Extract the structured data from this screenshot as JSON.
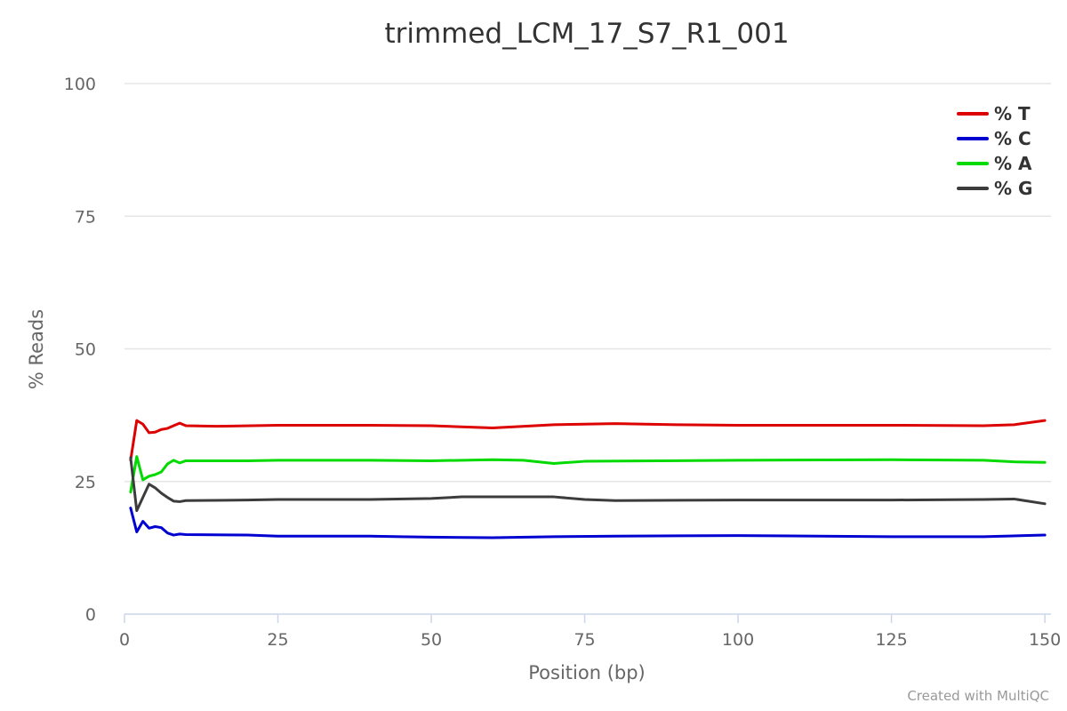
{
  "chart_data": {
    "type": "line",
    "title": "trimmed_LCM_17_S7_R1_001",
    "xlabel": "Position (bp)",
    "ylabel": "% Reads",
    "xlim": [
      0,
      151
    ],
    "ylim": [
      0,
      100
    ],
    "xticks": [
      0,
      25,
      50,
      75,
      100,
      125,
      150
    ],
    "yticks": [
      0,
      25,
      50,
      75,
      100
    ],
    "grid": true,
    "legend_position": "top-right",
    "credit": "Created with MultiQC",
    "series": [
      {
        "name": "% T",
        "color": "#dc0000",
        "points": [
          [
            1,
            29.0
          ],
          [
            2,
            36.5
          ],
          [
            3,
            35.8
          ],
          [
            4,
            34.2
          ],
          [
            5,
            34.3
          ],
          [
            6,
            34.8
          ],
          [
            7,
            35.0
          ],
          [
            8,
            35.5
          ],
          [
            9,
            36.0
          ],
          [
            10,
            35.5
          ],
          [
            15,
            35.4
          ],
          [
            25,
            35.6
          ],
          [
            40,
            35.6
          ],
          [
            50,
            35.5
          ],
          [
            60,
            35.1
          ],
          [
            70,
            35.7
          ],
          [
            80,
            35.9
          ],
          [
            90,
            35.7
          ],
          [
            100,
            35.6
          ],
          [
            110,
            35.6
          ],
          [
            125,
            35.6
          ],
          [
            140,
            35.5
          ],
          [
            145,
            35.7
          ],
          [
            150,
            36.5
          ]
        ]
      },
      {
        "name": "% C",
        "color": "#0000d1",
        "points": [
          [
            1,
            20.0
          ],
          [
            2,
            15.5
          ],
          [
            3,
            17.5
          ],
          [
            4,
            16.2
          ],
          [
            5,
            16.5
          ],
          [
            6,
            16.3
          ],
          [
            7,
            15.3
          ],
          [
            8,
            14.9
          ],
          [
            9,
            15.1
          ],
          [
            10,
            15.0
          ],
          [
            20,
            14.9
          ],
          [
            25,
            14.7
          ],
          [
            40,
            14.7
          ],
          [
            45,
            14.6
          ],
          [
            50,
            14.5
          ],
          [
            60,
            14.4
          ],
          [
            70,
            14.6
          ],
          [
            80,
            14.7
          ],
          [
            100,
            14.8
          ],
          [
            125,
            14.6
          ],
          [
            140,
            14.6
          ],
          [
            150,
            14.9
          ]
        ]
      },
      {
        "name": "% A",
        "color": "#00da00",
        "points": [
          [
            1,
            23.0
          ],
          [
            2,
            29.7
          ],
          [
            3,
            25.3
          ],
          [
            4,
            26.0
          ],
          [
            5,
            26.3
          ],
          [
            6,
            26.8
          ],
          [
            7,
            28.3
          ],
          [
            8,
            29.0
          ],
          [
            9,
            28.5
          ],
          [
            10,
            28.9
          ],
          [
            20,
            28.9
          ],
          [
            25,
            29.0
          ],
          [
            40,
            29.0
          ],
          [
            50,
            28.9
          ],
          [
            60,
            29.1
          ],
          [
            65,
            29.0
          ],
          [
            70,
            28.4
          ],
          [
            75,
            28.8
          ],
          [
            100,
            29.0
          ],
          [
            125,
            29.1
          ],
          [
            140,
            29.0
          ],
          [
            145,
            28.7
          ],
          [
            150,
            28.6
          ]
        ]
      },
      {
        "name": "% G",
        "color": "#3c3c3c",
        "points": [
          [
            1,
            29.5
          ],
          [
            2,
            19.5
          ],
          [
            3,
            22.0
          ],
          [
            4,
            24.5
          ],
          [
            5,
            23.8
          ],
          [
            6,
            22.8
          ],
          [
            7,
            22.0
          ],
          [
            8,
            21.3
          ],
          [
            9,
            21.2
          ],
          [
            10,
            21.4
          ],
          [
            20,
            21.5
          ],
          [
            25,
            21.6
          ],
          [
            40,
            21.6
          ],
          [
            50,
            21.8
          ],
          [
            55,
            22.1
          ],
          [
            60,
            22.1
          ],
          [
            70,
            22.1
          ],
          [
            75,
            21.6
          ],
          [
            80,
            21.4
          ],
          [
            100,
            21.5
          ],
          [
            125,
            21.5
          ],
          [
            140,
            21.6
          ],
          [
            145,
            21.7
          ],
          [
            150,
            20.8
          ]
        ]
      }
    ]
  }
}
